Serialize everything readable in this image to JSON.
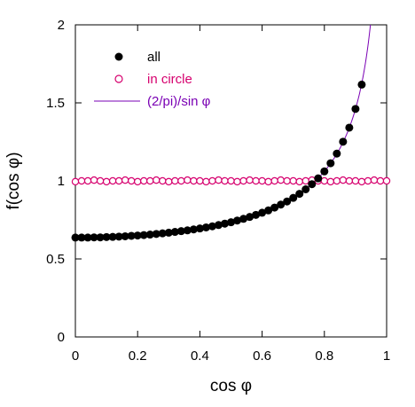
{
  "chart_data": {
    "type": "scatter",
    "xlabel": "cos φ",
    "ylabel": "f(cos φ)",
    "xlim": [
      0,
      1
    ],
    "ylim": [
      0,
      2
    ],
    "x_ticks": [
      "0",
      "0.2",
      "0.4",
      "0.6",
      "0.8",
      "1"
    ],
    "y_ticks": [
      "0",
      "0.5",
      "1",
      "1.5",
      "2"
    ],
    "x_tick_values": [
      0,
      0.2,
      0.4,
      0.6,
      0.8,
      1
    ],
    "y_tick_values": [
      0,
      0.5,
      1,
      1.5,
      2
    ],
    "grid": false,
    "legend_position": "top-left",
    "series": [
      {
        "name": "all",
        "kind": "filled-circles",
        "color": "#000000",
        "x": [
          0.0,
          0.02,
          0.04,
          0.06,
          0.08,
          0.1,
          0.12,
          0.14,
          0.16,
          0.18,
          0.2,
          0.22,
          0.24,
          0.26,
          0.28,
          0.3,
          0.32,
          0.34,
          0.36,
          0.38,
          0.4,
          0.42,
          0.44,
          0.46,
          0.48,
          0.5,
          0.52,
          0.54,
          0.56,
          0.58,
          0.6,
          0.62,
          0.64,
          0.66,
          0.68,
          0.7,
          0.72,
          0.74,
          0.76,
          0.78,
          0.8,
          0.82,
          0.84,
          0.86,
          0.88,
          0.9,
          0.92
        ],
        "y": [
          0.637,
          0.637,
          0.637,
          0.638,
          0.638,
          0.64,
          0.641,
          0.643,
          0.645,
          0.648,
          0.65,
          0.653,
          0.656,
          0.66,
          0.664,
          0.668,
          0.673,
          0.678,
          0.683,
          0.689,
          0.695,
          0.702,
          0.709,
          0.717,
          0.726,
          0.735,
          0.746,
          0.757,
          0.769,
          0.782,
          0.796,
          0.811,
          0.829,
          0.848,
          0.868,
          0.891,
          0.917,
          0.946,
          0.979,
          1.016,
          1.061,
          1.113,
          1.175,
          1.251,
          1.341,
          1.461,
          1.617
        ]
      },
      {
        "name": "in circle",
        "kind": "open-circles",
        "color": "#d6006e",
        "x": [
          0.0,
          0.02,
          0.04,
          0.06,
          0.08,
          0.1,
          0.12,
          0.14,
          0.16,
          0.18,
          0.2,
          0.22,
          0.24,
          0.26,
          0.28,
          0.3,
          0.32,
          0.34,
          0.36,
          0.38,
          0.4,
          0.42,
          0.44,
          0.46,
          0.48,
          0.5,
          0.52,
          0.54,
          0.56,
          0.58,
          0.6,
          0.62,
          0.64,
          0.66,
          0.68,
          0.7,
          0.72,
          0.74,
          0.76,
          0.78,
          0.8,
          0.82,
          0.84,
          0.86,
          0.88,
          0.9,
          0.92,
          0.94,
          0.96,
          0.98,
          1.0
        ],
        "y": [
          0.995,
          1.0,
          1.0,
          1.005,
          1.0,
          0.995,
          1.0,
          1.0,
          1.005,
          1.0,
          0.995,
          1.0,
          1.0,
          1.005,
          1.0,
          0.995,
          1.0,
          1.0,
          1.005,
          1.0,
          1.0,
          0.995,
          1.0,
          1.005,
          1.0,
          1.0,
          0.995,
          1.0,
          1.005,
          1.0,
          1.0,
          0.995,
          1.0,
          1.005,
          1.0,
          1.0,
          0.995,
          1.0,
          1.005,
          1.0,
          1.0,
          0.995,
          1.0,
          1.005,
          1.0,
          1.0,
          0.995,
          1.0,
          1.005,
          1.0,
          1.0
        ]
      },
      {
        "name": "(2/pi)/sin φ",
        "kind": "line",
        "color": "#7a00b4",
        "function": "(2/pi)/sin(acos(x))"
      }
    ]
  }
}
